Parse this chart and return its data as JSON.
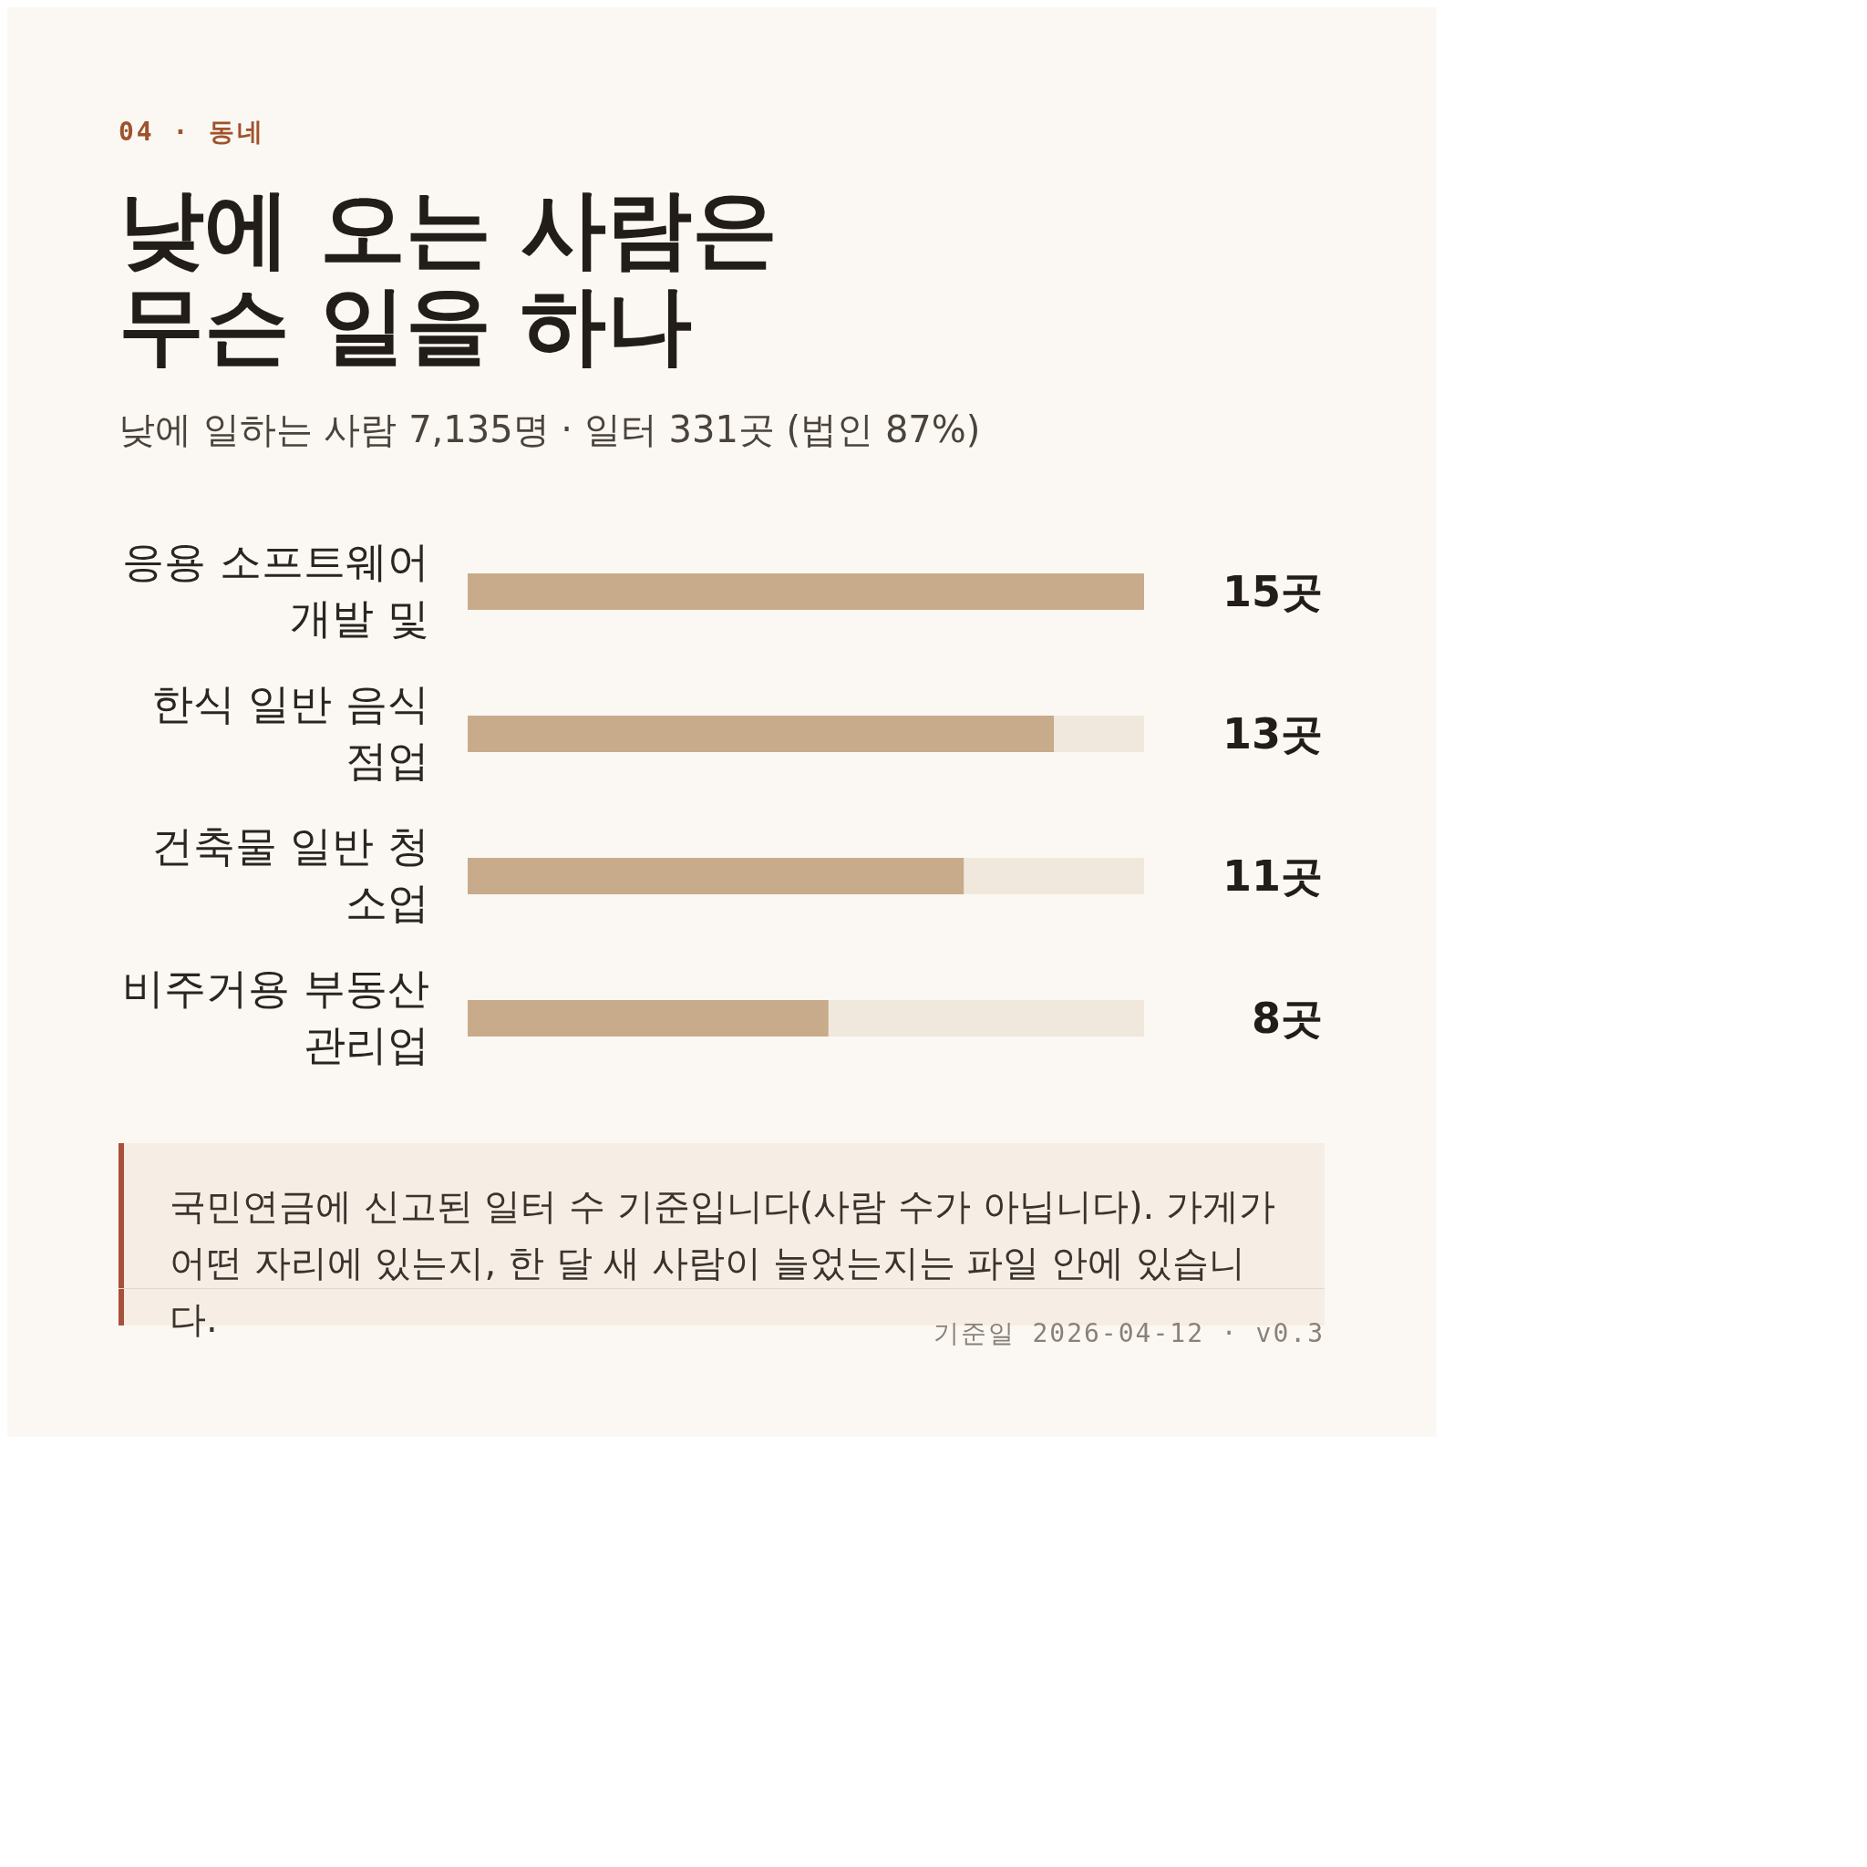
{
  "chart_data": {
    "type": "bar",
    "orientation": "horizontal",
    "title": "낮에 오는 사람은\n무슨 일을 하나",
    "subtitle": "낮에 일하는 사람 7,135명 · 일터 331곳 (법인 87%)",
    "categories": [
      "응용 소프트웨어 개발 및",
      "한식 일반 음식점업",
      "건축물 일반 청소업",
      "비주거용 부동산 관리업"
    ],
    "values": [
      15,
      13,
      11,
      8
    ],
    "value_labels": [
      "15곳",
      "13곳",
      "11곳",
      "8곳"
    ],
    "color": "#c8ab8a",
    "legend": false,
    "grid": false,
    "annotations": [
      "04 · 동네",
      "국민연금에 신고된 일터 수 기준입니다(사람 수가 아닙니다). 가게가 어떤 자리에 있는지, 한 달 새 사람이 늘었는지는 파일 안에 있습니다.",
      "기준일 2026-04-12 · v0.3"
    ]
  }
}
